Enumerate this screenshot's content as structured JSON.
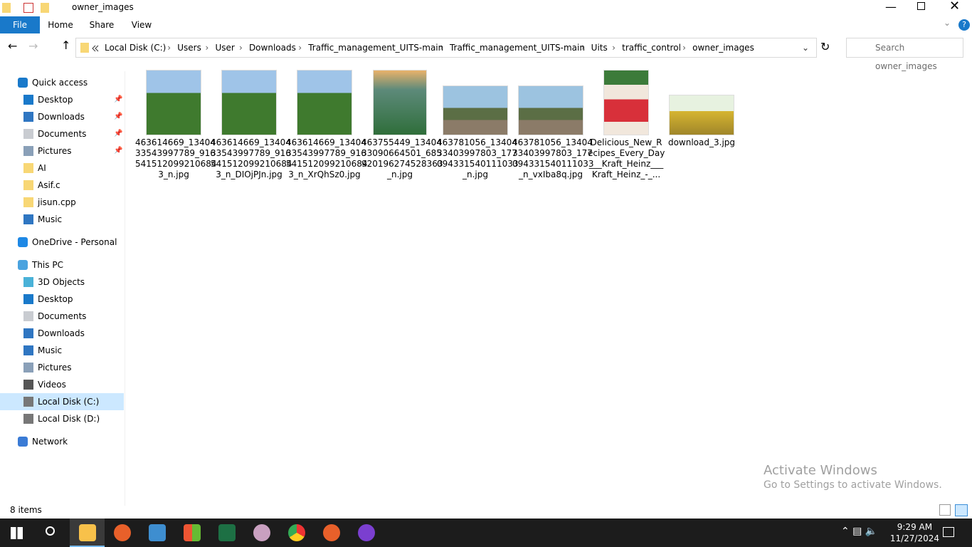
{
  "window": {
    "title": "owner_images"
  },
  "ribbon": {
    "tabs": [
      "File",
      "Home",
      "Share",
      "View"
    ]
  },
  "address": {
    "path": [
      "Local Disk (C:)",
      "Users",
      "User",
      "Downloads",
      "Traffic_management_UITS-main",
      "Traffic_management_UITS-main",
      "Uits",
      "traffic_control",
      "owner_images"
    ],
    "search_placeholder": "Search owner_images"
  },
  "nav": {
    "groups": [
      {
        "label": "Quick access",
        "items": [
          {
            "label": "Desktop",
            "pinned": true
          },
          {
            "label": "Downloads",
            "pinned": true
          },
          {
            "label": "Documents",
            "pinned": true
          },
          {
            "label": "Pictures",
            "pinned": true
          },
          {
            "label": "AI"
          },
          {
            "label": "Asif.c"
          },
          {
            "label": "jisun.cpp"
          },
          {
            "label": "Music"
          }
        ]
      },
      {
        "label": "OneDrive - Personal",
        "items": []
      },
      {
        "label": "This PC",
        "items": [
          {
            "label": "3D Objects"
          },
          {
            "label": "Desktop"
          },
          {
            "label": "Documents"
          },
          {
            "label": "Downloads"
          },
          {
            "label": "Music"
          },
          {
            "label": "Pictures"
          },
          {
            "label": "Videos"
          },
          {
            "label": "Local Disk (C:)",
            "selected": true
          },
          {
            "label": "Local Disk (D:)"
          }
        ]
      },
      {
        "label": "Network",
        "items": []
      }
    ]
  },
  "files": [
    {
      "lines": [
        "463614669_13404",
        "33543997789_916",
        "541512099210684",
        "3_n.jpg"
      ]
    },
    {
      "lines": [
        "463614669_13404",
        "33543997789_916",
        "541512099210684",
        "3_n_DIOjPJn.jpg"
      ]
    },
    {
      "lines": [
        "463614669_13404",
        "33543997789_916",
        "541512099210684",
        "3_n_XrQhSz0.jpg"
      ]
    },
    {
      "lines": [
        "463755449_13404",
        "33090664501_685",
        "920196274528363",
        "_n.jpg"
      ]
    },
    {
      "lines": [
        "463781056_13404",
        "33403997803_177",
        "094331540111033",
        "_n.jpg"
      ]
    },
    {
      "lines": [
        "463781056_13404",
        "33403997803_177",
        "094331540111033",
        "_n_vxIba8q.jpg"
      ]
    },
    {
      "lines": [
        "Delicious_New_R",
        "ecipes_Every_Day",
        "___Kraft_Heinz___",
        "Kraft_Heinz_-_..."
      ]
    },
    {
      "lines": [
        "download_3.jpg"
      ]
    }
  ],
  "status": {
    "item_count": "8 items"
  },
  "watermark": {
    "title": "Activate Windows",
    "subtitle": "Go to Settings to activate Windows."
  },
  "taskbar": {
    "time": "9:29 AM",
    "date": "11/27/2024"
  }
}
